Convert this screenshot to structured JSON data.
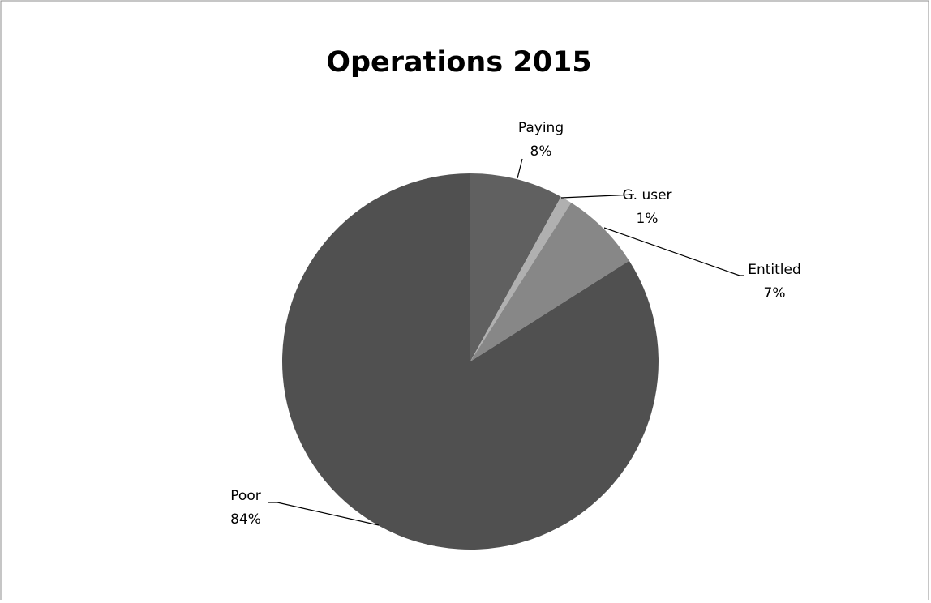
{
  "chart_data": {
    "type": "pie",
    "title": "Operations 2015",
    "categories": [
      "Paying",
      "G. user",
      "Entitled",
      "Poor"
    ],
    "values": [
      8,
      1,
      7,
      84
    ],
    "value_labels": [
      "8%",
      "1%",
      "7%",
      "84%"
    ],
    "colors": [
      "#606060",
      "#b0b0b0",
      "#878787",
      "#505050"
    ]
  }
}
